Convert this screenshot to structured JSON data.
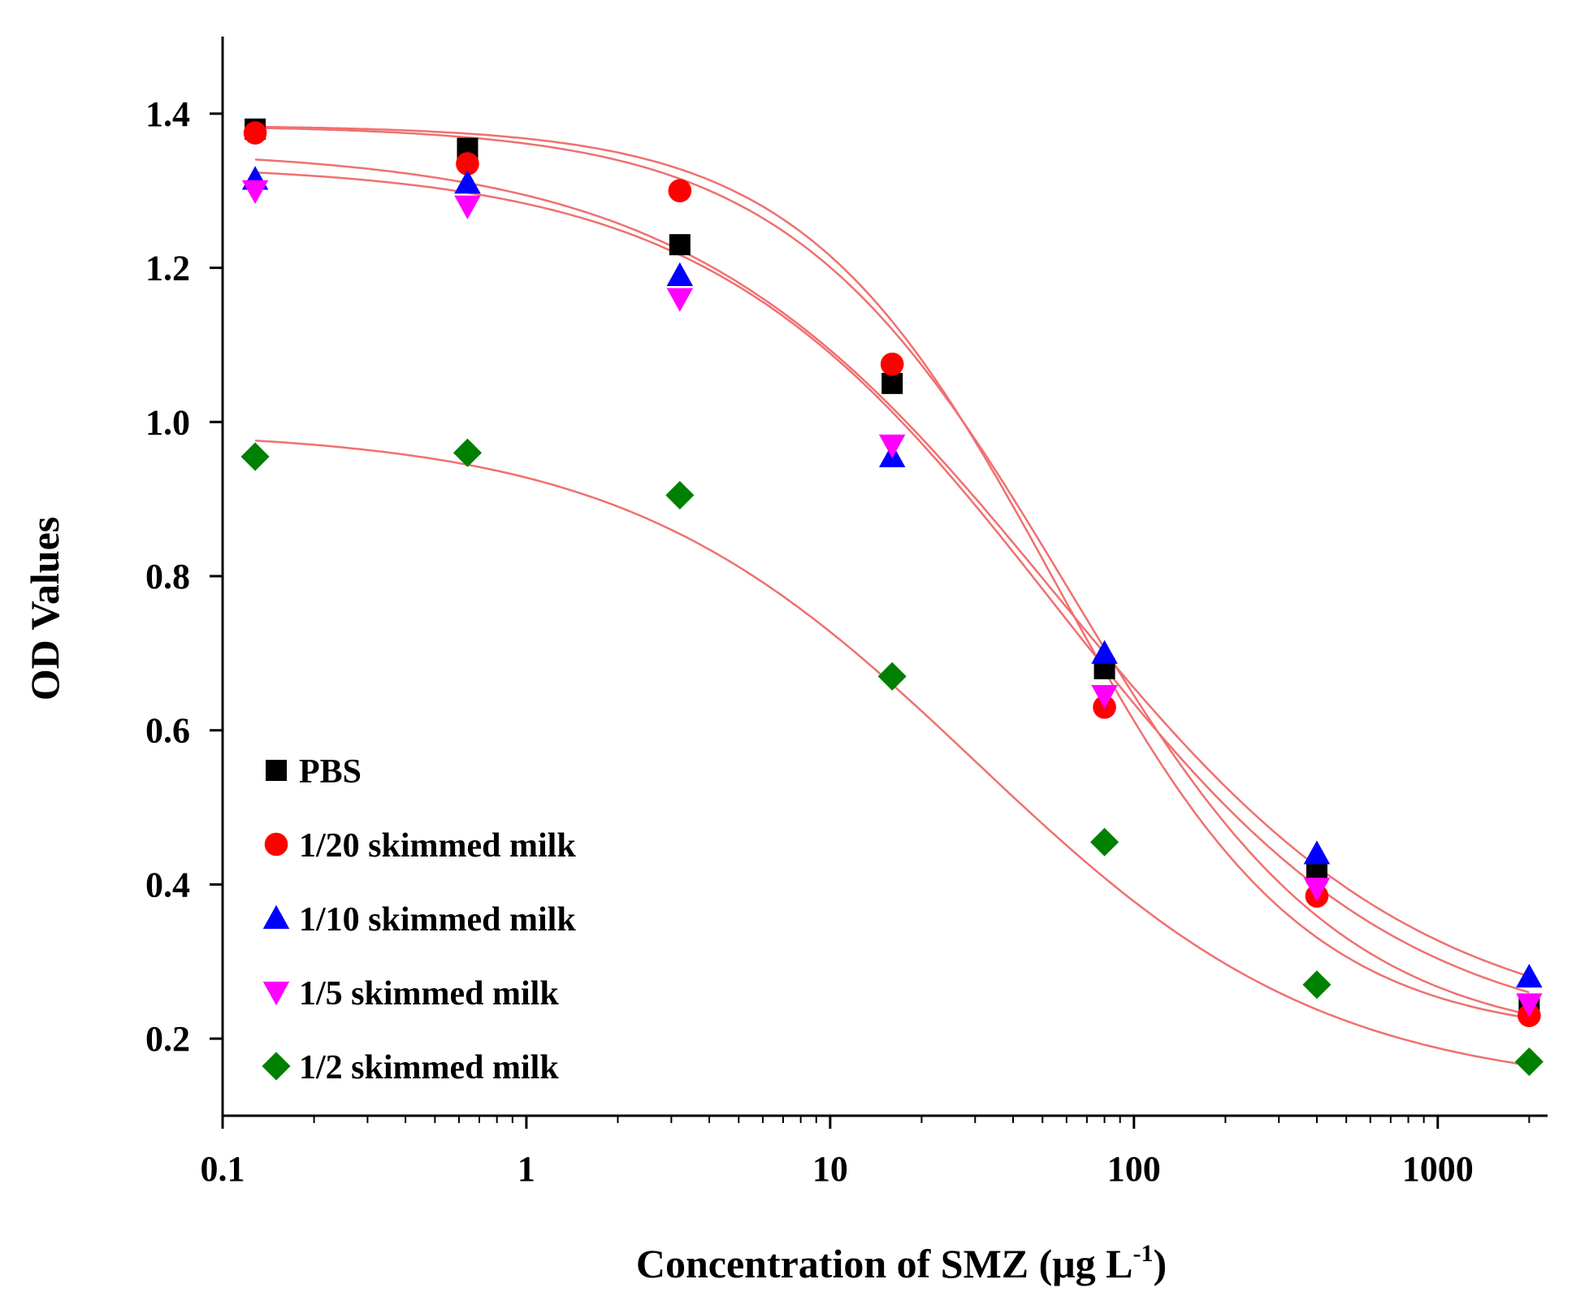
{
  "chart_data": {
    "type": "scatter",
    "xscale": "log",
    "xlabel": "Concentration of SMZ (μg L",
    "xlabel_sup": "-1",
    "xlabel_close": ")",
    "ylabel": "OD Values",
    "xlim": [
      0.1,
      2300
    ],
    "ylim": [
      0.1,
      1.5
    ],
    "xticks": [
      0.1,
      1,
      10,
      100,
      1000
    ],
    "xtick_labels": [
      "0.1",
      "1",
      "10",
      "100",
      "1000"
    ],
    "yticks": [
      0.2,
      0.4,
      0.6,
      0.8,
      1.0,
      1.2,
      1.4
    ],
    "ytick_labels": [
      "0.2",
      "0.4",
      "0.6",
      "0.8",
      "1.0",
      "1.2",
      "1.4"
    ],
    "legend_position": "bottom-left",
    "fit_line_color": "#f07070",
    "x": [
      0.128,
      0.64,
      3.2,
      16,
      80,
      400,
      2000
    ],
    "series": [
      {
        "name": "PBS",
        "marker": "square",
        "color": "#000000",
        "values": [
          1.38,
          1.355,
          1.23,
          1.05,
          0.68,
          0.415,
          0.245
        ],
        "fit": {
          "top": 1.385,
          "bottom": 0.19,
          "ic50": 60,
          "hill": 0.95
        }
      },
      {
        "name": "1/20 skimmed milk",
        "marker": "circle",
        "color": "#ff0000",
        "values": [
          1.375,
          1.335,
          1.3,
          1.075,
          0.63,
          0.385,
          0.23
        ],
        "fit": {
          "top": 1.385,
          "bottom": 0.2,
          "ic50": 55,
          "hill": 1.05
        }
      },
      {
        "name": "1/10 skimmed milk",
        "marker": "triangle-up",
        "color": "#0000ff",
        "values": [
          1.315,
          1.31,
          1.19,
          0.955,
          0.7,
          0.44,
          0.28
        ],
        "fit": {
          "top": 1.355,
          "bottom": 0.2,
          "ic50": 55,
          "hill": 0.72
        }
      },
      {
        "name": "1/5 skimmed milk",
        "marker": "triangle-down",
        "color": "#ff00ff",
        "values": [
          1.3,
          1.28,
          1.16,
          0.97,
          0.645,
          0.395,
          0.245
        ],
        "fit": {
          "top": 1.335,
          "bottom": 0.19,
          "ic50": 55,
          "hill": 0.76
        }
      },
      {
        "name": "1/2 skimmed milk",
        "marker": "diamond",
        "color": "#008000",
        "values": [
          0.955,
          0.96,
          0.905,
          0.67,
          0.455,
          0.27,
          0.17
        ],
        "fit": {
          "top": 0.99,
          "bottom": 0.13,
          "ic50": 30,
          "hill": 0.75
        }
      }
    ]
  }
}
